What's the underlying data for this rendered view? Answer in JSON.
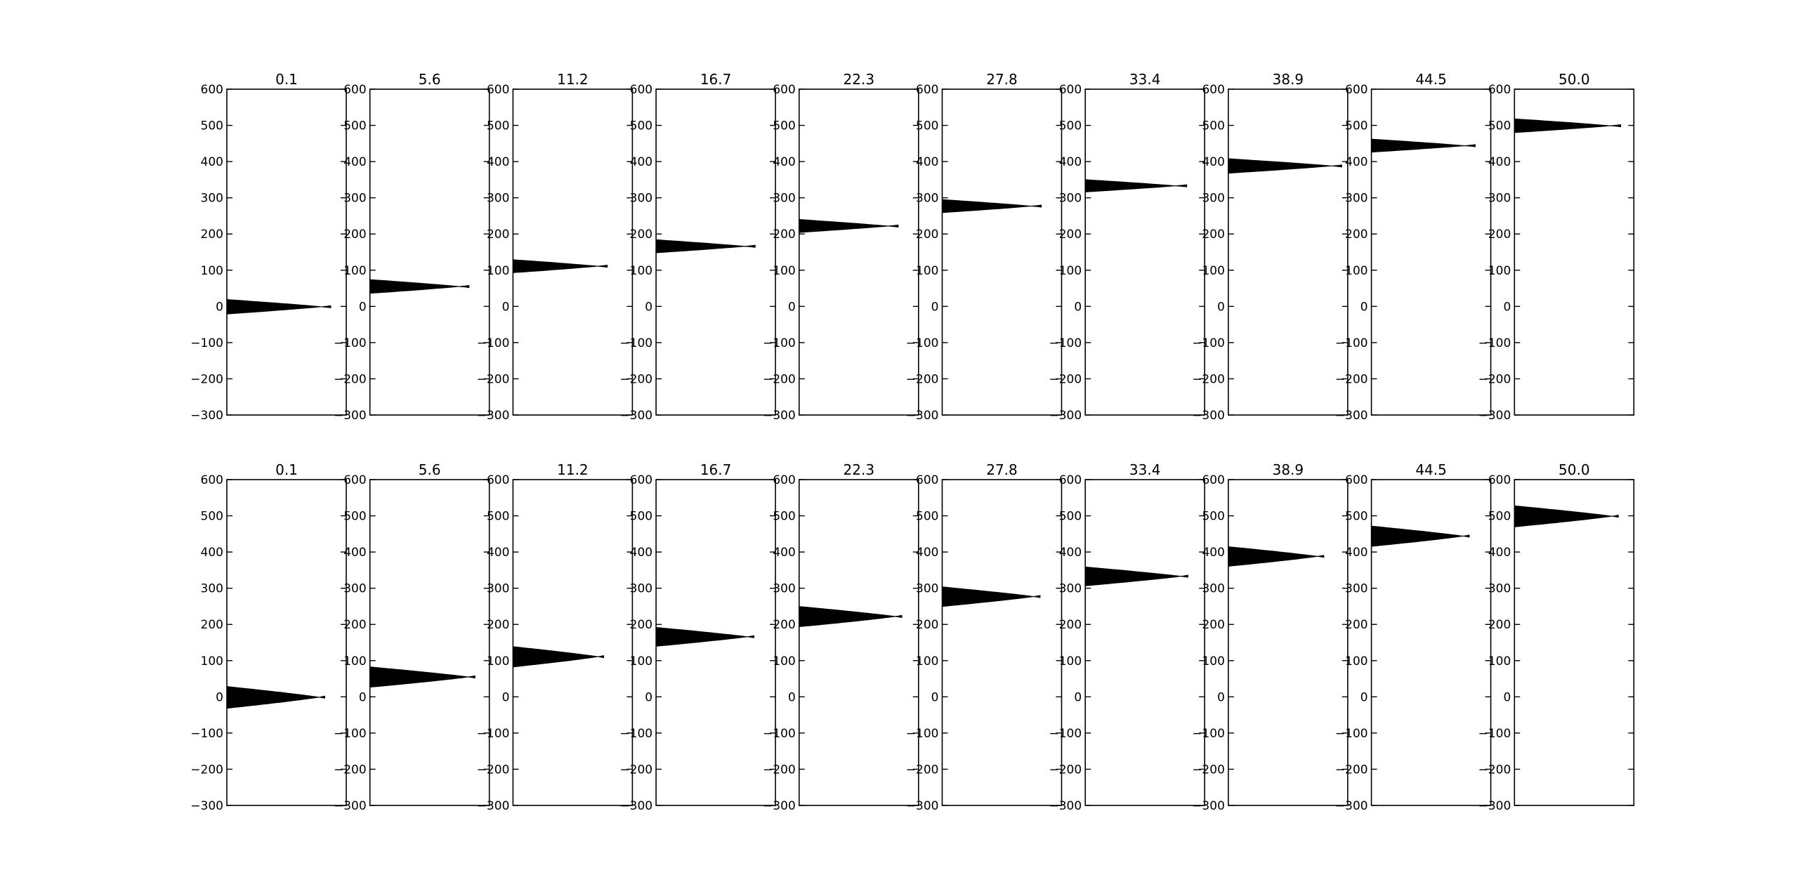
{
  "chart_data": {
    "type": "area",
    "title": "",
    "xlabel": "",
    "ylabel": "",
    "ylim": [
      -300,
      600
    ],
    "yticks": [
      -300,
      -200,
      -100,
      0,
      100,
      200,
      300,
      400,
      500,
      600
    ],
    "colors": {
      "fill": "#000000",
      "frame": "#000000",
      "background": "#ffffff"
    },
    "rows": [
      {
        "panels": [
          {
            "title": "0.1",
            "center": 0,
            "width": 40,
            "extent": 0.87
          },
          {
            "title": "5.6",
            "center": 56,
            "width": 38,
            "extent": 0.83
          },
          {
            "title": "11.2",
            "center": 112,
            "width": 36,
            "extent": 0.79
          },
          {
            "title": "16.7",
            "center": 167,
            "width": 36,
            "extent": 0.83
          },
          {
            "title": "22.3",
            "center": 223,
            "width": 36,
            "extent": 0.83
          },
          {
            "title": "27.8",
            "center": 278,
            "width": 36,
            "extent": 0.83
          },
          {
            "title": "33.4",
            "center": 334,
            "width": 34,
            "extent": 0.85
          },
          {
            "title": "38.9",
            "center": 389,
            "width": 40,
            "extent": 0.95
          },
          {
            "title": "44.5",
            "center": 445,
            "width": 36,
            "extent": 0.87
          },
          {
            "title": "50.0",
            "center": 500,
            "width": 38,
            "extent": 0.89
          }
        ]
      },
      {
        "panels": [
          {
            "title": "0.1",
            "center": 0,
            "width": 60,
            "extent": 0.82
          },
          {
            "title": "5.6",
            "center": 56,
            "width": 56,
            "extent": 0.88
          },
          {
            "title": "11.2",
            "center": 112,
            "width": 56,
            "extent": 0.76
          },
          {
            "title": "16.7",
            "center": 167,
            "width": 52,
            "extent": 0.82
          },
          {
            "title": "22.3",
            "center": 223,
            "width": 56,
            "extent": 0.86
          },
          {
            "title": "27.8",
            "center": 278,
            "width": 54,
            "extent": 0.82
          },
          {
            "title": "33.4",
            "center": 334,
            "width": 52,
            "extent": 0.86
          },
          {
            "title": "38.9",
            "center": 389,
            "width": 54,
            "extent": 0.8
          },
          {
            "title": "44.5",
            "center": 445,
            "width": 56,
            "extent": 0.82
          },
          {
            "title": "50.0",
            "center": 500,
            "width": 58,
            "extent": 0.87
          }
        ]
      }
    ]
  }
}
